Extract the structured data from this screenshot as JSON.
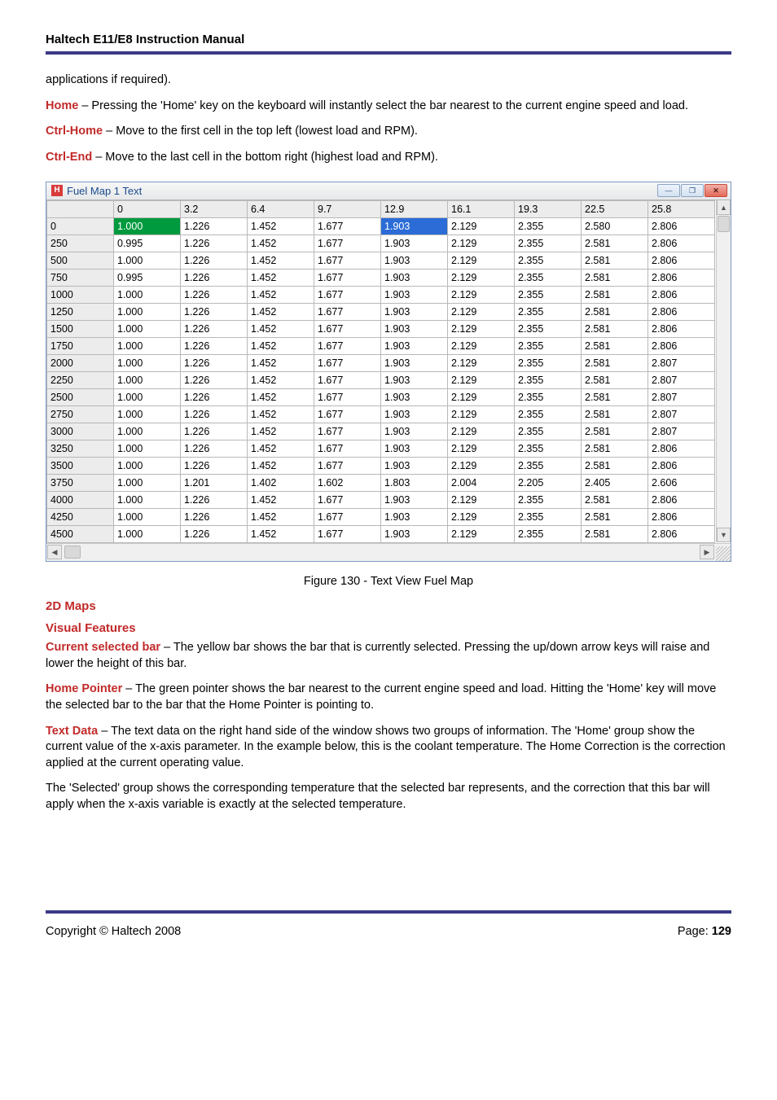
{
  "doc_title": "Haltech E11/E8 Instruction Manual",
  "para_cont": "applications if required).",
  "home_term": "Home",
  "home_text": " – Pressing the 'Home' key on the keyboard will instantly select the bar nearest to the current engine speed and load.",
  "ctrlhome_term": "Ctrl-Home",
  "ctrlhome_text": " – Move to the first cell in the top left (lowest load and RPM).",
  "ctrlend_term": "Ctrl-End",
  "ctrlend_text": " – Move to the last cell in the bottom right (highest load and RPM).",
  "figure_caption": "Figure 130 - Text View Fuel Map",
  "sec_2dmaps": "2D Maps",
  "sec_visual": "Visual Features",
  "cur_bar_term": "Current selected bar",
  "cur_bar_text": " – The yellow bar shows the bar that is currently selected. Pressing the up/down arrow keys will raise and lower the height of this bar.",
  "home_ptr_term": "Home Pointer",
  "home_ptr_text": " – The green pointer shows the bar nearest to the current engine speed and load. Hitting the 'Home' key will move the selected bar to the bar that the Home Pointer is pointing to.",
  "text_data_term": "Text Data",
  "text_data_text": " – The text data on the right hand side of the window shows two groups of information. The 'Home' group show the current value of the x-axis parameter. In the example below, this is the coolant temperature. The Home Correction is the correction applied at the current operating value.",
  "selected_text": "The 'Selected' group shows the corresponding temperature that the selected bar represents, and the correction that this bar will apply when the x-axis variable is exactly at the selected temperature.",
  "copyright": "Copyright © Haltech 2008",
  "page_label": "Page: ",
  "page_num": "129",
  "window": {
    "icon_letter": "H",
    "title": "Fuel Map 1 Text",
    "min_glyph": "—",
    "max_glyph": "❐",
    "close_glyph": "✕",
    "col_headers": [
      "",
      "0",
      "3.2",
      "6.4",
      "9.7",
      "12.9",
      "16.1",
      "19.3",
      "22.5",
      "25.8"
    ],
    "row_headers": [
      "0",
      "250",
      "500",
      "750",
      "1000",
      "1250",
      "1500",
      "1750",
      "2000",
      "2250",
      "2500",
      "2750",
      "3000",
      "3250",
      "3500",
      "3750",
      "4000",
      "4250",
      "4500"
    ],
    "rows": [
      [
        "1.000",
        "1.226",
        "1.452",
        "1.677",
        "1.903",
        "2.129",
        "2.355",
        "2.580",
        "2.806"
      ],
      [
        "0.995",
        "1.226",
        "1.452",
        "1.677",
        "1.903",
        "2.129",
        "2.355",
        "2.581",
        "2.806"
      ],
      [
        "1.000",
        "1.226",
        "1.452",
        "1.677",
        "1.903",
        "2.129",
        "2.355",
        "2.581",
        "2.806"
      ],
      [
        "0.995",
        "1.226",
        "1.452",
        "1.677",
        "1.903",
        "2.129",
        "2.355",
        "2.581",
        "2.806"
      ],
      [
        "1.000",
        "1.226",
        "1.452",
        "1.677",
        "1.903",
        "2.129",
        "2.355",
        "2.581",
        "2.806"
      ],
      [
        "1.000",
        "1.226",
        "1.452",
        "1.677",
        "1.903",
        "2.129",
        "2.355",
        "2.581",
        "2.806"
      ],
      [
        "1.000",
        "1.226",
        "1.452",
        "1.677",
        "1.903",
        "2.129",
        "2.355",
        "2.581",
        "2.806"
      ],
      [
        "1.000",
        "1.226",
        "1.452",
        "1.677",
        "1.903",
        "2.129",
        "2.355",
        "2.581",
        "2.806"
      ],
      [
        "1.000",
        "1.226",
        "1.452",
        "1.677",
        "1.903",
        "2.129",
        "2.355",
        "2.581",
        "2.807"
      ],
      [
        "1.000",
        "1.226",
        "1.452",
        "1.677",
        "1.903",
        "2.129",
        "2.355",
        "2.581",
        "2.807"
      ],
      [
        "1.000",
        "1.226",
        "1.452",
        "1.677",
        "1.903",
        "2.129",
        "2.355",
        "2.581",
        "2.807"
      ],
      [
        "1.000",
        "1.226",
        "1.452",
        "1.677",
        "1.903",
        "2.129",
        "2.355",
        "2.581",
        "2.807"
      ],
      [
        "1.000",
        "1.226",
        "1.452",
        "1.677",
        "1.903",
        "2.129",
        "2.355",
        "2.581",
        "2.807"
      ],
      [
        "1.000",
        "1.226",
        "1.452",
        "1.677",
        "1.903",
        "2.129",
        "2.355",
        "2.581",
        "2.806"
      ],
      [
        "1.000",
        "1.226",
        "1.452",
        "1.677",
        "1.903",
        "2.129",
        "2.355",
        "2.581",
        "2.806"
      ],
      [
        "1.000",
        "1.201",
        "1.402",
        "1.602",
        "1.803",
        "2.004",
        "2.205",
        "2.405",
        "2.606"
      ],
      [
        "1.000",
        "1.226",
        "1.452",
        "1.677",
        "1.903",
        "2.129",
        "2.355",
        "2.581",
        "2.806"
      ],
      [
        "1.000",
        "1.226",
        "1.452",
        "1.677",
        "1.903",
        "2.129",
        "2.355",
        "2.581",
        "2.806"
      ],
      [
        "1.000",
        "1.226",
        "1.452",
        "1.677",
        "1.903",
        "2.129",
        "2.355",
        "2.581",
        "2.806"
      ]
    ],
    "green_cell": {
      "row": 0,
      "col": 0
    },
    "blue_cell": {
      "row": 0,
      "col": 4
    },
    "colors": {
      "window_border": "#7a9ac0",
      "header_bg": "#ececec",
      "grid_border": "#b8b8b8",
      "green_sel": "#009a3e",
      "blue_sel": "#2b6cd6",
      "title_color": "#1a4b8c",
      "app_icon_bg": "#d93a3a"
    }
  }
}
